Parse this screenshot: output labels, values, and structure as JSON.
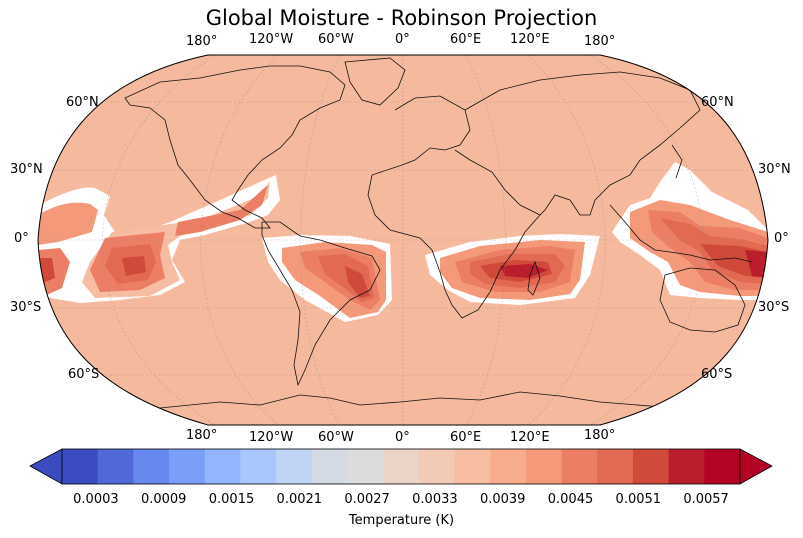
{
  "title": "Global Moisture - Robinson Projection",
  "map": {
    "projection": "Robinson",
    "background_color": "#f5b99d",
    "gridlines": true,
    "top_lon_labels": [
      "180°",
      "120°W",
      "60°W",
      "0°",
      "60°E",
      "120°E",
      "180°"
    ],
    "bottom_lon_labels": [
      "180°",
      "120°W",
      "60°W",
      "0°",
      "60°E",
      "120°E",
      "180°"
    ],
    "left_lat_labels": [
      "60°N",
      "30°N",
      "0°",
      "30°S",
      "60°S"
    ],
    "right_lat_labels": [
      "60°N",
      "30°N",
      "0°",
      "30°S",
      "60°S"
    ]
  },
  "colorbar": {
    "label": "Temperature (K)",
    "tick_labels": [
      "0.0003",
      "0.0009",
      "0.0015",
      "0.0021",
      "0.0027",
      "0.0033",
      "0.0039",
      "0.0045",
      "0.0051",
      "0.0057"
    ],
    "colors": [
      "#3b4cc0",
      "#4f69d9",
      "#6788ee",
      "#7b9ff9",
      "#93b5fe",
      "#aac7fd",
      "#c0d4f5",
      "#d5dbe5",
      "#dddcdc",
      "#ead4c8",
      "#f2cab5",
      "#f6bda2",
      "#f7ac8e",
      "#f49a7b",
      "#ec7e66",
      "#e26952",
      "#d0493b",
      "#ba1e2d",
      "#b40426"
    ],
    "range": [
      0.0,
      0.006
    ]
  }
}
